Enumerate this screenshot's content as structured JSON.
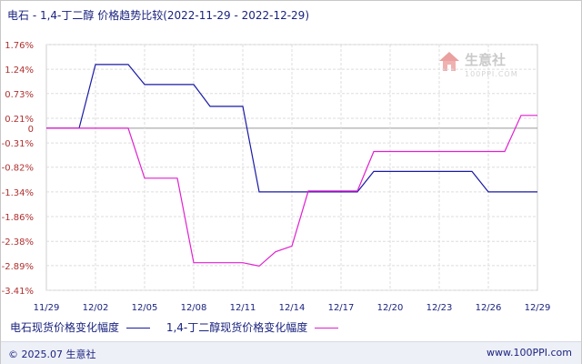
{
  "title": {
    "main": "电石 - 1,4-丁二醇 价格趋势比较",
    "range": "(2022-11-29 - 2022-12-29)"
  },
  "watermark": {
    "text": "生意社",
    "sub": "100PPI.COM"
  },
  "footer": {
    "copyright": "© 2025.07 生意社",
    "site": "www.100PPI.com"
  },
  "colors": {
    "series1": "#1a1aa6",
    "series2": "#e020d0",
    "axis_text": "#b03030",
    "grid": "#dddddd",
    "zero_line": "#999999"
  },
  "chart_data": {
    "type": "line",
    "x_ticks": [
      "11/29",
      "12/02",
      "12/05",
      "12/08",
      "12/11",
      "12/14",
      "12/17",
      "12/20",
      "12/23",
      "12/26",
      "12/29"
    ],
    "y_ticks": [
      "1.76%",
      "1.24%",
      "0.73%",
      "0.21%",
      "0",
      "-0.31%",
      "-0.82%",
      "-1.34%",
      "-1.86%",
      "-2.38%",
      "-2.89%",
      "-3.41%"
    ],
    "ylim": [
      -3.41,
      1.76
    ],
    "xlim": [
      0,
      30
    ],
    "series": [
      {
        "name": "电石现货价格变化幅度",
        "points": [
          [
            0,
            0
          ],
          [
            2,
            0
          ],
          [
            3,
            1.34
          ],
          [
            5,
            1.34
          ],
          [
            6,
            0.92
          ],
          [
            9,
            0.92
          ],
          [
            10,
            0.46
          ],
          [
            12,
            0.46
          ],
          [
            13,
            -1.34
          ],
          [
            19,
            -1.34
          ],
          [
            20,
            -0.91
          ],
          [
            26,
            -0.91
          ],
          [
            27,
            -1.34
          ],
          [
            30,
            -1.34
          ]
        ]
      },
      {
        "name": "1,4-丁二醇现货价格变化幅度",
        "points": [
          [
            0,
            0
          ],
          [
            5,
            0
          ],
          [
            6,
            -1.05
          ],
          [
            8,
            -1.05
          ],
          [
            9,
            -2.83
          ],
          [
            12,
            -2.83
          ],
          [
            13,
            -2.9
          ],
          [
            14,
            -2.6
          ],
          [
            15,
            -2.48
          ],
          [
            16,
            -1.32
          ],
          [
            19,
            -1.32
          ],
          [
            20,
            -0.49
          ],
          [
            28,
            -0.49
          ],
          [
            29,
            0.27
          ],
          [
            30,
            0.27
          ]
        ]
      }
    ]
  }
}
